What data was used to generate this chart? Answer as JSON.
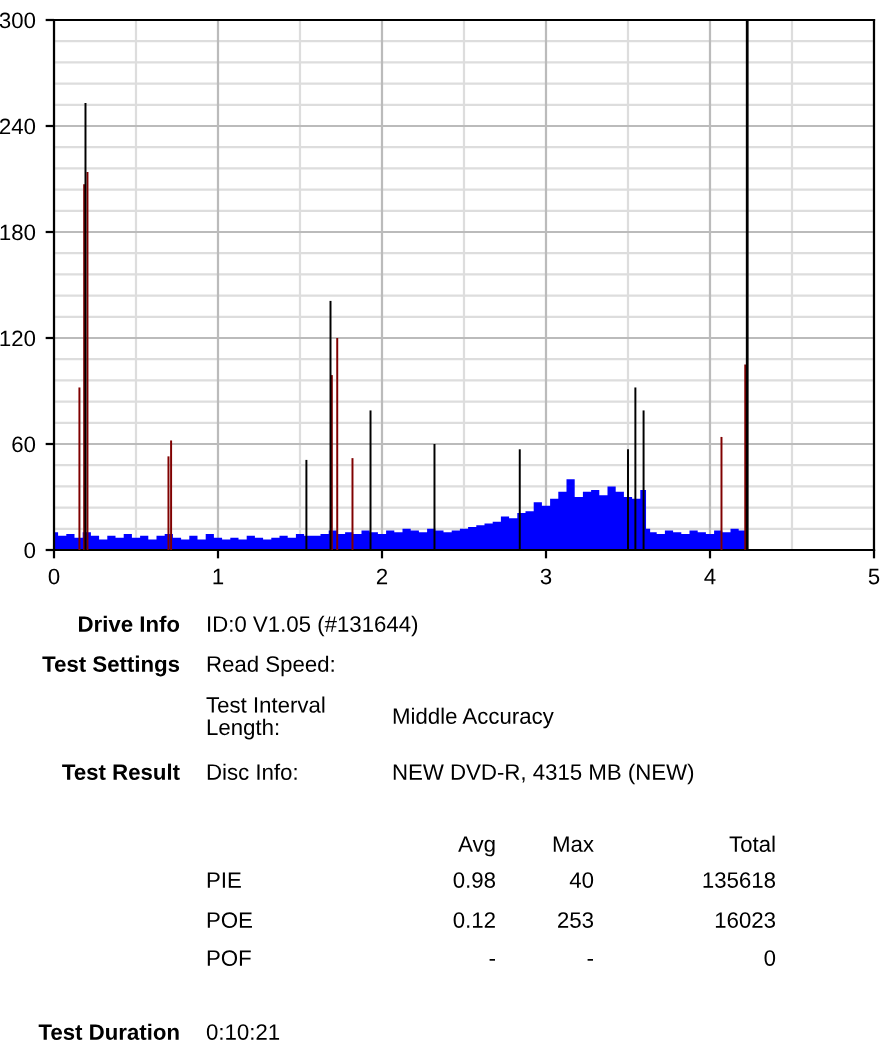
{
  "chart_data": {
    "type": "area",
    "xlim": [
      0,
      5
    ],
    "xticks": [
      0,
      1,
      2,
      3,
      4,
      5
    ],
    "ylim": [
      0,
      300
    ],
    "yticks": [
      0,
      60,
      120,
      180,
      240,
      300
    ],
    "grid": true,
    "series": [
      {
        "color": "#0000ff",
        "x": [
          0,
          0.05,
          0.1,
          0.15,
          0.2,
          0.25,
          0.3,
          0.35,
          0.4,
          0.45,
          0.5,
          0.55,
          0.6,
          0.65,
          0.7,
          0.75,
          0.8,
          0.85,
          0.9,
          0.95,
          1.0,
          1.05,
          1.1,
          1.15,
          1.2,
          1.25,
          1.3,
          1.35,
          1.4,
          1.45,
          1.5,
          1.55,
          1.6,
          1.65,
          1.7,
          1.75,
          1.8,
          1.85,
          1.9,
          1.95,
          2.0,
          2.05,
          2.1,
          2.15,
          2.2,
          2.25,
          2.3,
          2.35,
          2.4,
          2.45,
          2.5,
          2.55,
          2.6,
          2.65,
          2.7,
          2.75,
          2.8,
          2.85,
          2.9,
          2.95,
          3.0,
          3.05,
          3.1,
          3.15,
          3.2,
          3.25,
          3.3,
          3.35,
          3.4,
          3.45,
          3.5,
          3.55,
          3.6,
          3.62,
          3.65,
          3.7,
          3.75,
          3.8,
          3.85,
          3.9,
          3.95,
          4.0,
          4.05,
          4.1,
          4.15,
          4.2,
          4.227
        ],
        "values": [
          10,
          8,
          9,
          7,
          10,
          8,
          6,
          8,
          7,
          9,
          7,
          8,
          6,
          8,
          9,
          7,
          6,
          8,
          6,
          9,
          7,
          6,
          7,
          6,
          8,
          7,
          6,
          7,
          8,
          7,
          9,
          8,
          8,
          9,
          11,
          9,
          10,
          9,
          11,
          10,
          9,
          11,
          10,
          12,
          11,
          10,
          12,
          11,
          10,
          11,
          12,
          13,
          14,
          15,
          16,
          19,
          18,
          21,
          22,
          27,
          25,
          29,
          33,
          40,
          30,
          33,
          34,
          31,
          36,
          33,
          30,
          29,
          34,
          12,
          10,
          9,
          11,
          10,
          9,
          11,
          10,
          9,
          11,
          10,
          12,
          11,
          11
        ]
      },
      {
        "type": "bar",
        "color": "#800000",
        "x": [
          0.155,
          0.184,
          0.204,
          0.698,
          0.714,
          1.694,
          1.727,
          1.82,
          4.07,
          4.215
        ],
        "values": [
          92,
          207,
          214,
          53,
          62,
          99,
          120,
          52,
          64,
          105
        ]
      },
      {
        "type": "bar",
        "color": "#000000",
        "x": [
          0.192,
          1.539,
          1.686,
          1.93,
          2.32,
          2.84,
          3.5,
          3.545,
          3.595
        ],
        "values": [
          253,
          51,
          141,
          79,
          60,
          57,
          57,
          92,
          79
        ]
      }
    ],
    "ref_lines": [
      {
        "axis": "x",
        "value": 4.227,
        "color": "#000000"
      }
    ],
    "annotations": [
      "Drive Info",
      "ID:0 V1.05 (#131644)",
      "Test Settings",
      "Read Speed:",
      "Test Interval\nLength:",
      "Middle Accuracy",
      "Test Result",
      "Disc Info:",
      "NEW DVD-R, 4315 MB (NEW)",
      "Avg",
      "Max",
      "Total",
      "PIE",
      "0.98",
      "40",
      "135618",
      "POE",
      "0.12",
      "253",
      "16023",
      "POF",
      "-",
      "-",
      "0",
      "Test Duration",
      "0:10:21"
    ]
  }
}
